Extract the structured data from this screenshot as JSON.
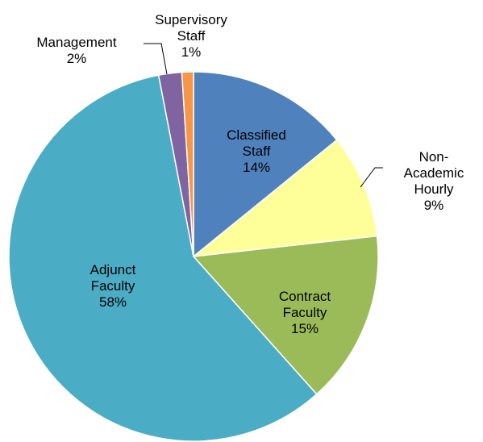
{
  "chart_data": {
    "type": "pie",
    "categories": [
      "Classified Staff",
      "Non-Academic Hourly",
      "Contract Faculty",
      "Adjunct Faculty",
      "Management",
      "Supervisory Staff"
    ],
    "values": [
      14,
      9,
      15,
      58,
      2,
      1
    ],
    "value_labels": [
      "14%",
      "9%",
      "15%",
      "58%",
      "2%",
      "1%"
    ],
    "colors": [
      "#4f81bd",
      "#ffff99",
      "#9bbb59",
      "#4bacc6",
      "#8064a2",
      "#f79646"
    ],
    "start_angle": 0,
    "direction": "clockwise"
  }
}
